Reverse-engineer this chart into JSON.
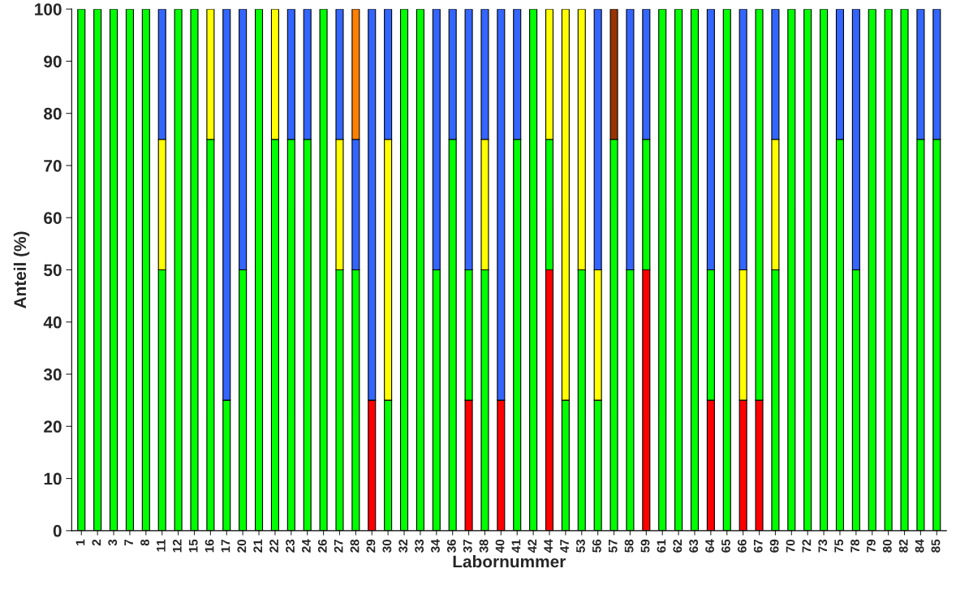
{
  "chart_data": {
    "type": "bar",
    "stacked": true,
    "xlabel": "Labornummer",
    "ylabel": "Anteil (%)",
    "categories": [
      "1",
      "2",
      "3",
      "7",
      "8",
      "11",
      "12",
      "15",
      "16",
      "17",
      "20",
      "21",
      "22",
      "23",
      "24",
      "26",
      "27",
      "28",
      "29",
      "30",
      "32",
      "33",
      "34",
      "36",
      "37",
      "38",
      "40",
      "41",
      "42",
      "44",
      "47",
      "53",
      "56",
      "57",
      "58",
      "59",
      "61",
      "62",
      "63",
      "64",
      "65",
      "66",
      "67",
      "69",
      "70",
      "72",
      "73",
      "75",
      "78",
      "79",
      "80",
      "82",
      "84",
      "85"
    ],
    "series": [
      {
        "color": "#ff0000",
        "values": [
          null,
          null,
          null,
          null,
          null,
          null,
          null,
          null,
          null,
          null,
          null,
          null,
          null,
          null,
          null,
          null,
          null,
          null,
          25,
          null,
          null,
          null,
          null,
          null,
          25,
          null,
          25,
          null,
          null,
          50,
          null,
          null,
          null,
          null,
          null,
          50,
          null,
          null,
          null,
          25,
          null,
          25,
          25,
          null,
          null,
          null,
          null,
          null,
          null,
          null,
          null,
          null,
          null,
          null
        ]
      },
      {
        "color": "#00ff00",
        "values": [
          100,
          100,
          100,
          100,
          100,
          50,
          100,
          100,
          75,
          25,
          50,
          100,
          75,
          75,
          75,
          100,
          50,
          50,
          null,
          25,
          100,
          100,
          50,
          75,
          25,
          50,
          null,
          75,
          100,
          25,
          25,
          50,
          25,
          75,
          50,
          25,
          100,
          100,
          100,
          25,
          100,
          null,
          75,
          50,
          100,
          100,
          100,
          75,
          50,
          100,
          100,
          100,
          75,
          75
        ]
      },
      {
        "color": "#ffff00",
        "values": [
          null,
          null,
          null,
          null,
          null,
          25,
          null,
          null,
          25,
          null,
          null,
          null,
          25,
          null,
          null,
          null,
          25,
          null,
          null,
          50,
          null,
          null,
          null,
          null,
          null,
          25,
          null,
          null,
          null,
          25,
          75,
          50,
          25,
          null,
          null,
          null,
          null,
          null,
          null,
          null,
          null,
          25,
          null,
          25,
          null,
          null,
          null,
          null,
          null,
          null,
          null,
          null,
          null,
          null
        ]
      },
      {
        "color": "#3366ff",
        "values": [
          null,
          null,
          null,
          null,
          null,
          25,
          null,
          null,
          null,
          75,
          50,
          null,
          null,
          25,
          25,
          null,
          25,
          25,
          75,
          25,
          null,
          null,
          50,
          25,
          50,
          25,
          75,
          25,
          null,
          null,
          null,
          null,
          50,
          null,
          50,
          25,
          null,
          null,
          null,
          50,
          null,
          50,
          null,
          25,
          null,
          null,
          null,
          25,
          50,
          null,
          null,
          null,
          25,
          25
        ]
      },
      {
        "color": "#ff8000",
        "values": [
          null,
          null,
          null,
          null,
          null,
          null,
          null,
          null,
          null,
          null,
          null,
          null,
          null,
          null,
          null,
          null,
          null,
          25,
          null,
          null,
          null,
          null,
          null,
          null,
          null,
          null,
          null,
          null,
          null,
          null,
          null,
          null,
          null,
          null,
          null,
          null,
          null,
          null,
          null,
          null,
          null,
          null,
          null,
          null,
          null,
          null,
          null,
          null,
          null,
          null,
          null,
          null,
          null,
          null
        ]
      },
      {
        "color": "#993300",
        "values": [
          null,
          null,
          null,
          null,
          null,
          null,
          null,
          null,
          null,
          null,
          null,
          null,
          null,
          null,
          null,
          null,
          null,
          null,
          null,
          null,
          null,
          null,
          null,
          null,
          null,
          null,
          null,
          null,
          null,
          null,
          null,
          null,
          null,
          25,
          null,
          null,
          null,
          null,
          null,
          null,
          null,
          null,
          null,
          null,
          null,
          null,
          null,
          null,
          null,
          null,
          null,
          null,
          null,
          null
        ]
      }
    ],
    "ylim": [
      0,
      100
    ],
    "yticks": [
      0,
      10,
      20,
      30,
      40,
      50,
      60,
      70,
      80,
      90,
      100
    ],
    "grid": false
  }
}
